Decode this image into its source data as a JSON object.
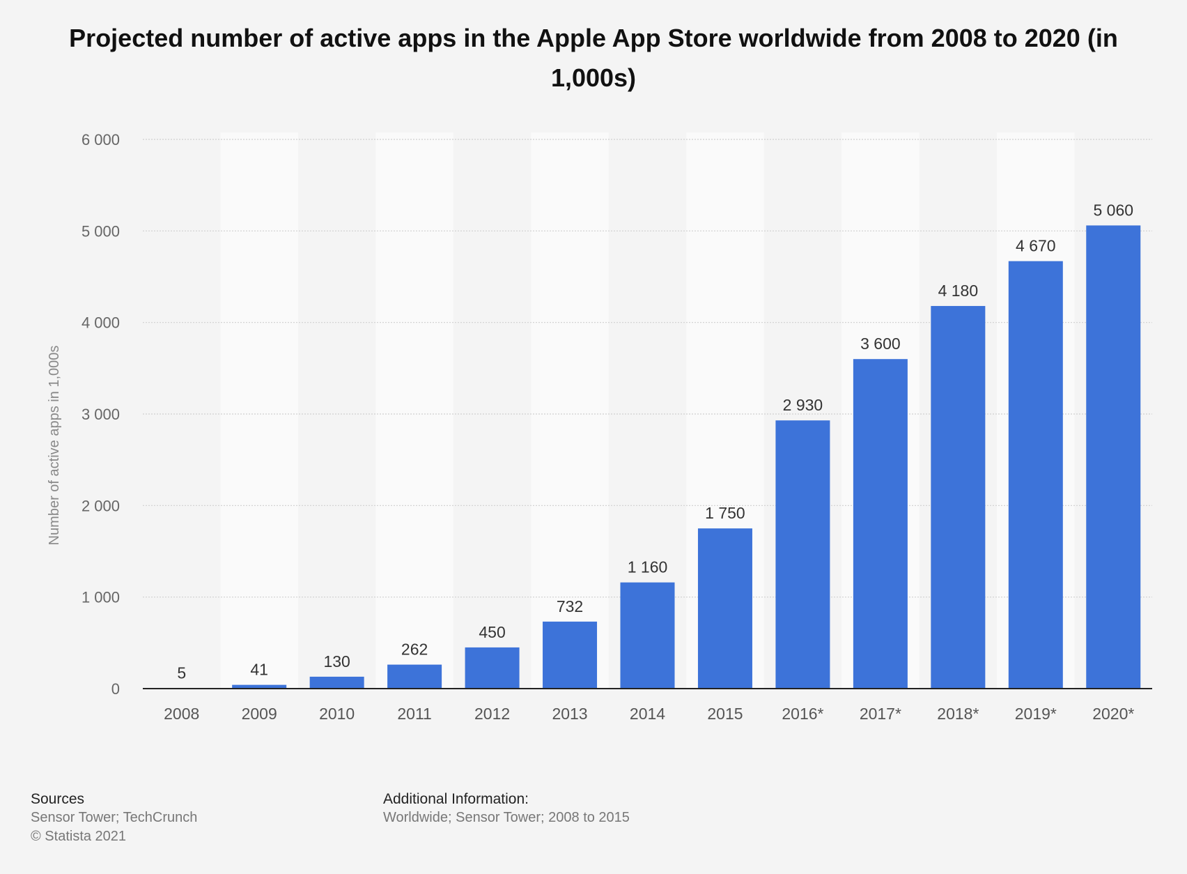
{
  "chart_data": {
    "type": "bar",
    "title": "Projected number of active apps in the Apple App Store worldwide from 2008 to 2020 (in 1,000s)",
    "ylabel": "Number of active apps in 1,000s",
    "xlabel": "",
    "categories": [
      "2008",
      "2009",
      "2010",
      "2011",
      "2012",
      "2013",
      "2014",
      "2015",
      "2016*",
      "2017*",
      "2018*",
      "2019*",
      "2020*"
    ],
    "values": [
      5,
      41,
      130,
      262,
      450,
      732,
      1160,
      1750,
      2930,
      3600,
      4180,
      4670,
      5060
    ],
    "value_labels": [
      "5",
      "41",
      "130",
      "262",
      "450",
      "732",
      "1 160",
      "1 750",
      "2 930",
      "3 600",
      "4 180",
      "4 670",
      "5 060"
    ],
    "ylim": [
      0,
      6000
    ],
    "yticks": [
      0,
      1000,
      2000,
      3000,
      4000,
      5000,
      6000
    ],
    "ytick_labels": [
      "0",
      "1 000",
      "2 000",
      "3 000",
      "4 000",
      "5 000",
      "6 000"
    ],
    "grid": true,
    "bar_color": "#3d73d9"
  },
  "footer": {
    "sources_heading": "Sources",
    "sources_text": "Sensor Tower; TechCrunch",
    "copyright": "© Statista 2021",
    "additional_heading": "Additional Information:",
    "additional_text": "Worldwide; Sensor Tower; 2008 to 2015"
  }
}
